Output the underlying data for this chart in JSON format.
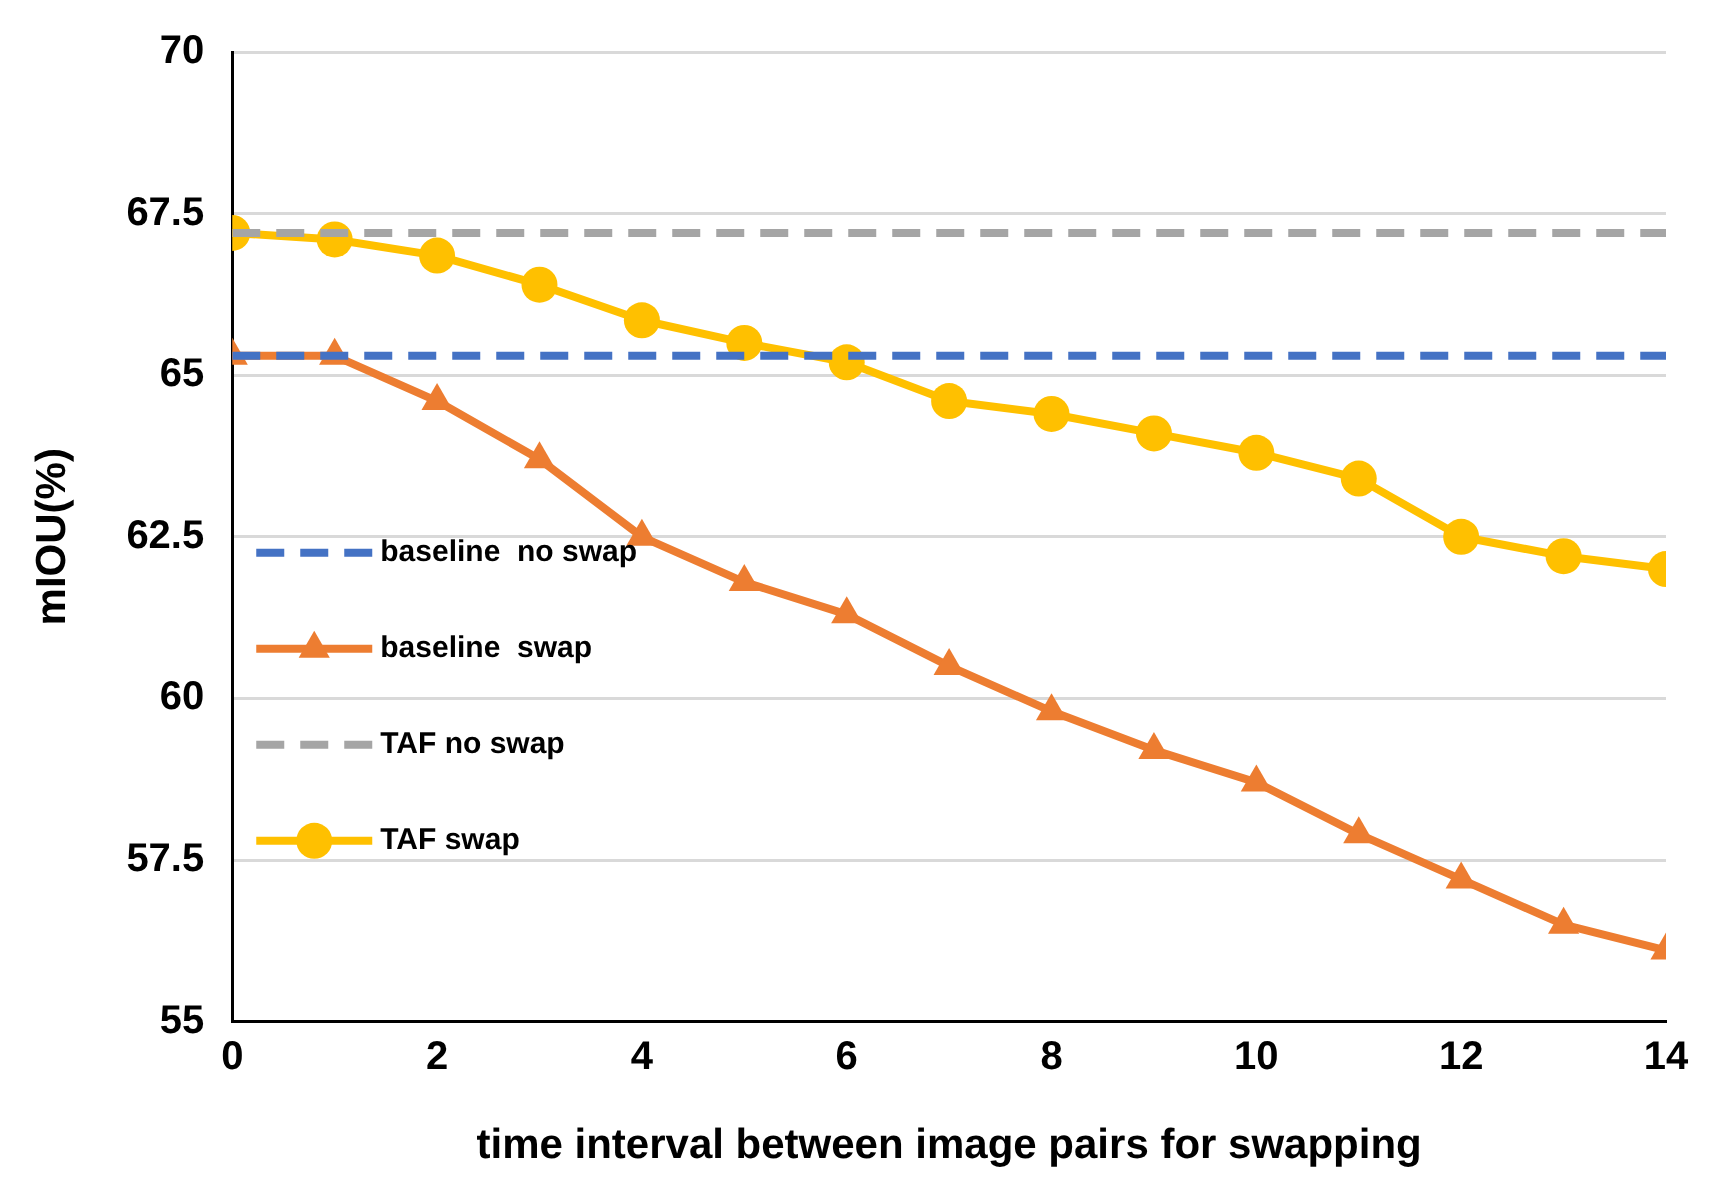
{
  "chart_data": {
    "type": "line",
    "xlabel": "time interval between image pairs for swapping",
    "ylabel": "mIOU(%)",
    "x": [
      0,
      1,
      2,
      3,
      4,
      5,
      6,
      7,
      8,
      9,
      10,
      11,
      12,
      13,
      14
    ],
    "xlim": [
      0,
      14
    ],
    "xticks": [
      0,
      2,
      4,
      6,
      8,
      10,
      12,
      14
    ],
    "ylim": [
      55,
      70
    ],
    "yticks": [
      55,
      57.5,
      60,
      62.5,
      65,
      67.5,
      70
    ],
    "grid": "y",
    "legend": "left",
    "series": [
      {
        "name": "baseline  no swap",
        "color": "#4472c4",
        "line_style": "dashed",
        "marker": "none",
        "values": [
          65.3,
          65.3,
          65.3,
          65.3,
          65.3,
          65.3,
          65.3,
          65.3,
          65.3,
          65.3,
          65.3,
          65.3,
          65.3,
          65.3,
          65.3
        ]
      },
      {
        "name": "baseline  swap",
        "color": "#ed7d31",
        "line_style": "solid",
        "marker": "triangle",
        "values": [
          65.3,
          65.3,
          64.6,
          63.7,
          62.5,
          61.8,
          61.3,
          60.5,
          59.8,
          59.2,
          58.7,
          57.9,
          57.2,
          56.5,
          56.1
        ]
      },
      {
        "name": "TAF no swap",
        "color": "#a5a5a5",
        "line_style": "dashed",
        "marker": "none",
        "values": [
          67.2,
          67.2,
          67.2,
          67.2,
          67.2,
          67.2,
          67.2,
          67.2,
          67.2,
          67.2,
          67.2,
          67.2,
          67.2,
          67.2,
          67.2
        ]
      },
      {
        "name": "TAF swap",
        "color": "#ffc000",
        "line_style": "solid",
        "marker": "circle",
        "values": [
          67.2,
          67.1,
          66.85,
          66.4,
          65.85,
          65.5,
          65.2,
          64.6,
          64.4,
          64.1,
          63.8,
          63.4,
          62.5,
          62.2,
          62.0
        ]
      }
    ]
  }
}
